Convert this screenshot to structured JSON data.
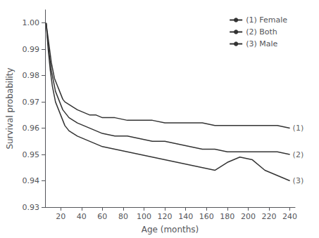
{
  "chart_data": {
    "type": "line",
    "xlabel": "Age (months)",
    "ylabel": "Survival probability",
    "xlim": [
      5,
      245
    ],
    "ylim": [
      0.93,
      1.005
    ],
    "xticks": [
      20,
      40,
      60,
      80,
      100,
      120,
      140,
      160,
      180,
      200,
      220,
      240
    ],
    "yticks": [
      0.93,
      0.94,
      0.95,
      0.96,
      0.97,
      0.98,
      0.99,
      {
        "value": 1,
        "label": "1.00"
      }
    ],
    "grid": false,
    "legend": "upper right",
    "series": [
      {
        "name": "(1) Female",
        "color": "#333333",
        "x": [
          6,
          7,
          8,
          9,
          10,
          11,
          12,
          13,
          14,
          15,
          16,
          17,
          18,
          19,
          20,
          22,
          24,
          28,
          32,
          36,
          42,
          48,
          54,
          60,
          72,
          84,
          96,
          108,
          120,
          132,
          144,
          156,
          168,
          180,
          192,
          204,
          216,
          228,
          240
        ],
        "values": [
          1.0,
          0.997,
          0.994,
          0.991,
          0.988,
          0.985,
          0.983,
          0.981,
          0.979,
          0.978,
          0.977,
          0.976,
          0.975,
          0.974,
          0.973,
          0.971,
          0.97,
          0.969,
          0.968,
          0.967,
          0.966,
          0.965,
          0.965,
          0.964,
          0.964,
          0.963,
          0.963,
          0.963,
          0.962,
          0.962,
          0.962,
          0.962,
          0.961,
          0.961,
          0.961,
          0.961,
          0.961,
          0.961,
          0.96
        ]
      },
      {
        "name": "(2) Both",
        "color": "#333333",
        "x": [
          6,
          7,
          8,
          9,
          10,
          11,
          12,
          13,
          14,
          15,
          16,
          17,
          18,
          19,
          20,
          22,
          24,
          28,
          32,
          36,
          42,
          48,
          54,
          60,
          72,
          84,
          96,
          108,
          120,
          132,
          144,
          156,
          168,
          180,
          192,
          204,
          216,
          228,
          240
        ],
        "values": [
          1.0,
          0.996,
          0.992,
          0.988,
          0.985,
          0.982,
          0.98,
          0.978,
          0.976,
          0.974,
          0.973,
          0.972,
          0.971,
          0.97,
          0.969,
          0.967,
          0.966,
          0.964,
          0.963,
          0.962,
          0.961,
          0.96,
          0.959,
          0.958,
          0.957,
          0.957,
          0.956,
          0.955,
          0.955,
          0.954,
          0.953,
          0.952,
          0.952,
          0.951,
          0.951,
          0.951,
          0.951,
          0.951,
          0.95
        ]
      },
      {
        "name": "(3) Male",
        "color": "#333333",
        "x": [
          6,
          7,
          8,
          9,
          10,
          11,
          12,
          13,
          14,
          15,
          16,
          17,
          18,
          19,
          20,
          22,
          24,
          28,
          32,
          36,
          42,
          48,
          54,
          60,
          72,
          84,
          96,
          108,
          120,
          132,
          144,
          156,
          168,
          180,
          192,
          204,
          216,
          228,
          240
        ],
        "values": [
          1.0,
          0.995,
          0.99,
          0.986,
          0.982,
          0.979,
          0.976,
          0.974,
          0.972,
          0.97,
          0.969,
          0.968,
          0.967,
          0.966,
          0.965,
          0.963,
          0.961,
          0.959,
          0.958,
          0.957,
          0.956,
          0.955,
          0.954,
          0.953,
          0.952,
          0.951,
          0.95,
          0.949,
          0.948,
          0.947,
          0.946,
          0.945,
          0.944,
          0.947,
          0.949,
          0.948,
          0.944,
          0.942,
          0.94
        ]
      }
    ],
    "annotations": [
      {
        "text": "(1)",
        "x": 240,
        "y": 0.96
      },
      {
        "text": "(2)",
        "x": 240,
        "y": 0.95
      },
      {
        "text": "(3)",
        "x": 240,
        "y": 0.94
      }
    ]
  }
}
